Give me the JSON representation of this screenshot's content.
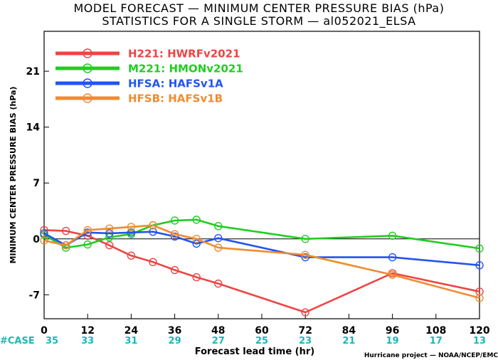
{
  "chart_data": {
    "type": "line",
    "title": "MODEL FORECAST — MINIMUM CENTER PRESSURE BIAS (hPa)",
    "subtitle": "STATISTICS FOR A SINGLE STORM — al052021_ELSA",
    "xlabel": "Forecast lead time (hr)",
    "ylabel": "MINIMUM CENTER PRESSURE BIAS (hPa)",
    "xlim": [
      0,
      120
    ],
    "ylim": [
      -10,
      26
    ],
    "x_ticks": [
      0,
      12,
      24,
      36,
      48,
      60,
      72,
      84,
      96,
      108,
      120
    ],
    "y_ticks": [
      -7,
      0,
      7,
      14,
      21
    ],
    "legend_position": "top-left",
    "case_label": "#CASE",
    "case_counts": [
      35,
      33,
      31,
      29,
      27,
      25,
      23,
      21,
      19,
      17,
      13
    ],
    "credit": "Hurricane project — NOAA/NCEP/EMC",
    "series": [
      {
        "name": "H221:  HWRFv2021",
        "color": "#ee4444",
        "x": [
          0,
          6,
          12,
          18,
          24,
          30,
          36,
          42,
          48,
          72,
          96,
          120
        ],
        "values": [
          1.1,
          1.0,
          0.4,
          -0.8,
          -2.1,
          -2.9,
          -3.9,
          -4.8,
          -5.6,
          -9.2,
          -4.3,
          -6.6
        ]
      },
      {
        "name": "M221:  HMONv2021",
        "color": "#22cc22",
        "x": [
          0,
          6,
          12,
          18,
          24,
          30,
          36,
          42,
          48,
          72,
          96,
          120
        ],
        "values": [
          0.5,
          -1.1,
          -0.7,
          0.2,
          0.6,
          1.7,
          2.3,
          2.4,
          1.6,
          0.0,
          0.4,
          -1.2
        ]
      },
      {
        "name": "HFSA:  HAFSv1A",
        "color": "#2255ee",
        "x": [
          0,
          6,
          12,
          18,
          24,
          30,
          36,
          42,
          48,
          72,
          96,
          120
        ],
        "values": [
          0.7,
          -0.8,
          0.8,
          0.7,
          0.8,
          0.9,
          0.3,
          -0.6,
          0.1,
          -2.3,
          -2.3,
          -3.3
        ]
      },
      {
        "name": "HFSB:  HAFSv1B",
        "color": "#f08c2e",
        "x": [
          0,
          6,
          12,
          18,
          24,
          30,
          36,
          42,
          48,
          72,
          96,
          120
        ],
        "values": [
          -0.2,
          -0.8,
          1.1,
          1.3,
          1.5,
          1.7,
          0.6,
          0.0,
          -1.1,
          -2.0,
          -4.5,
          -7.4
        ]
      }
    ]
  }
}
